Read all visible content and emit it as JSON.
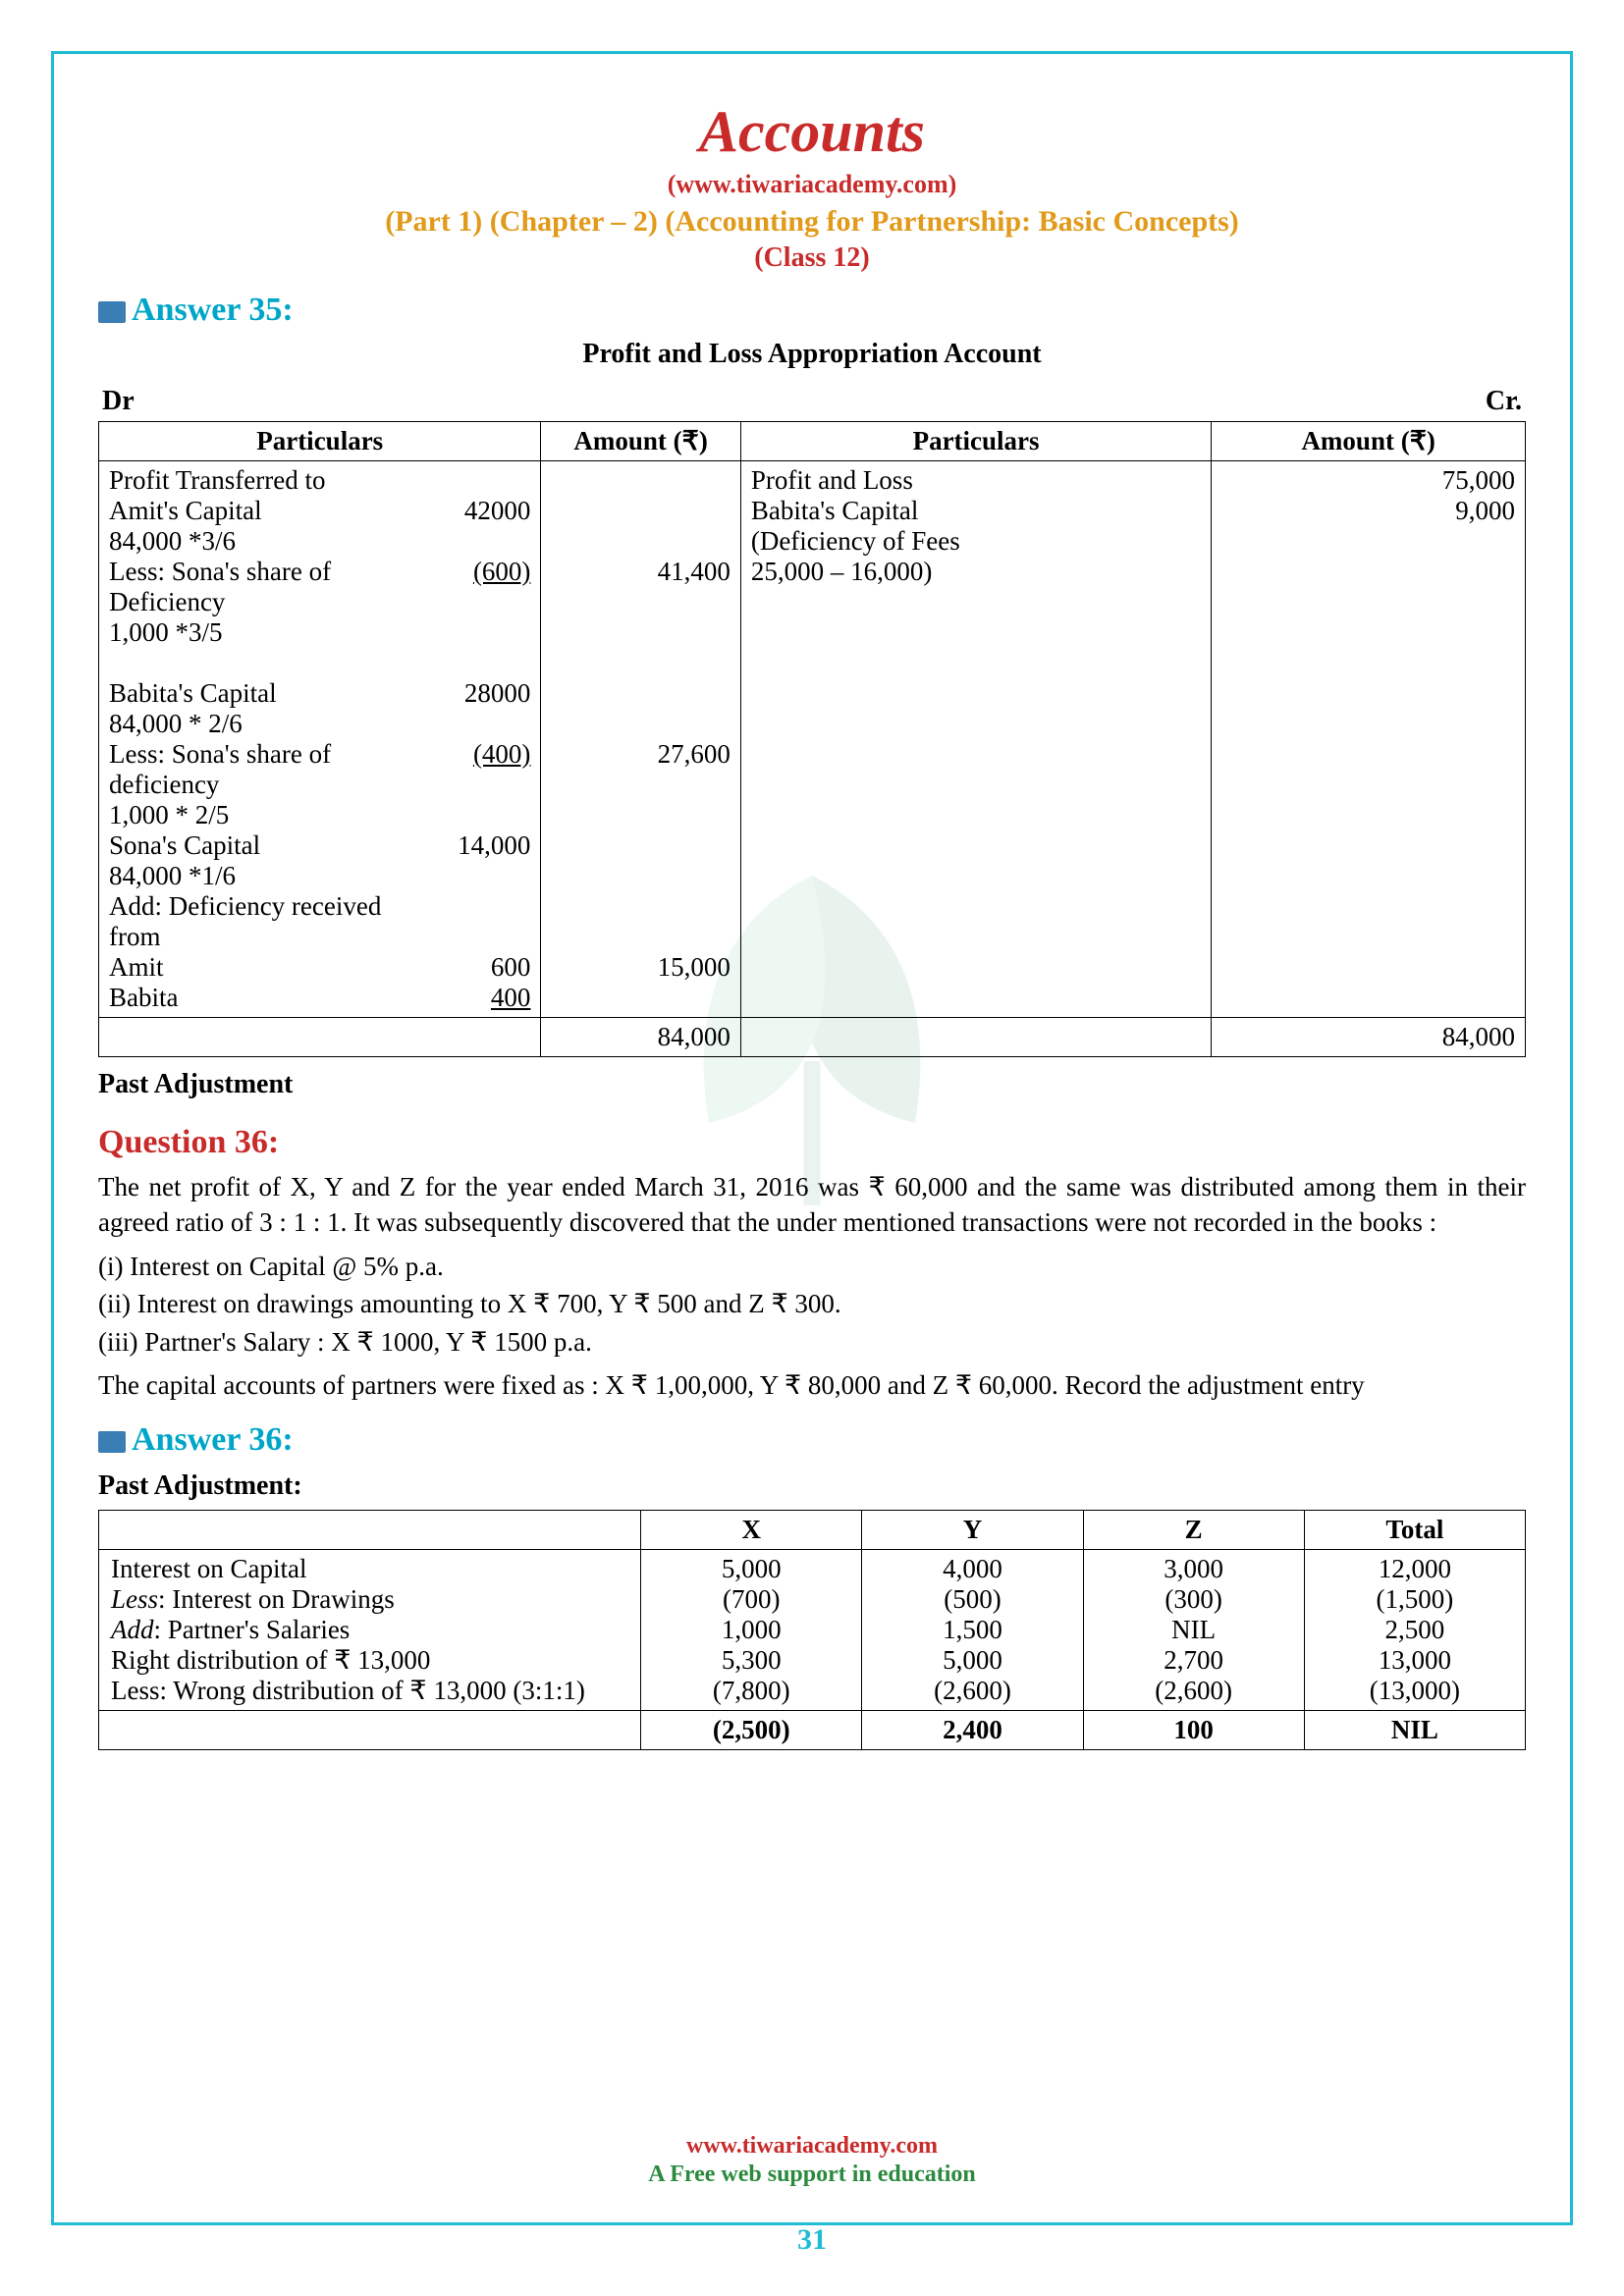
{
  "header": {
    "title": "Accounts",
    "link": "(www.tiwariacademy.com)",
    "chapter": "(Part 1) (Chapter – 2) (Accounting for Partnership: Basic Concepts)",
    "class_line": "(Class 12)"
  },
  "answer35": {
    "heading": "Answer 35:",
    "table_title": "Profit and Loss Appropriation Account",
    "dr": "Dr",
    "cr": "Cr.",
    "headers": [
      "Particulars",
      "Amount (₹)",
      "Particulars",
      "Amount (₹)"
    ],
    "left_rows": [
      {
        "l": "Profit Transferred to",
        "r": ""
      },
      {
        "l": "Amit's Capital",
        "r": "42000"
      },
      {
        "l": "84,000 *3/6",
        "r": ""
      },
      {
        "l": "Less: Sona's share of",
        "r": "(600)",
        "u": true
      },
      {
        "l": "Deficiency",
        "r": ""
      },
      {
        "l": "1,000 *3/5",
        "r": ""
      },
      {
        "l": " ",
        "r": ""
      },
      {
        "l": "Babita's Capital",
        "r": "28000"
      },
      {
        "l": "84,000 * 2/6",
        "r": ""
      },
      {
        "l": "Less: Sona's share of",
        "r": "(400)",
        "u": true
      },
      {
        "l": "deficiency",
        "r": ""
      },
      {
        "l": "1,000 * 2/5",
        "r": ""
      },
      {
        "l": "Sona's Capital",
        "r": "14,000"
      },
      {
        "l": "84,000 *1/6",
        "r": ""
      },
      {
        "l": "Add: Deficiency received from",
        "r": ""
      },
      {
        "l": "Amit",
        "r": "600"
      },
      {
        "l": "Babita",
        "r": "400",
        "u": true
      }
    ],
    "left_amounts": [
      "",
      "",
      "",
      "41,400",
      "",
      "",
      "",
      "",
      "",
      "27,600",
      "",
      "",
      "",
      "",
      "",
      "",
      "15,000"
    ],
    "right_rows": [
      {
        "p": "Profit and Loss",
        "a": "75,000"
      },
      {
        "p": "Babita's Capital",
        "a": "9,000"
      },
      {
        "p": "(Deficiency of Fees",
        "a": ""
      },
      {
        "p": "25,000 – 16,000)",
        "a": ""
      }
    ],
    "totals": {
      "l": "84,000",
      "r": "84,000"
    },
    "past_adj": "Past Adjustment"
  },
  "question36": {
    "heading": "Question 36:",
    "para1": "The net profit of X, Y and Z for the year ended March 31, 2016 was ₹ 60,000 and the same was distributed among them in their agreed ratio of 3 : 1 : 1. It was subsequently discovered that the under mentioned transactions were not recorded in the books :",
    "items": [
      "  (i) Interest on Capital @ 5% p.a.",
      " (ii) Interest on drawings amounting to X ₹ 700, Y ₹ 500 and Z ₹ 300.",
      "(iii) Partner's Salary : X ₹ 1000, Y ₹ 1500 p.a."
    ],
    "para2": "The capital accounts of partners were fixed as : X ₹ 1,00,000, Y ₹ 80,000 and Z ₹ 60,000. Record the adjustment entry"
  },
  "answer36": {
    "heading": "Answer 36:",
    "sub": "Past Adjustment:",
    "cols": [
      "",
      "X",
      "Y",
      "Z",
      "Total"
    ],
    "rows": [
      {
        "label": "Interest on Capital",
        "x": "5,000",
        "y": "4,000",
        "z": "3,000",
        "t": "12,000"
      },
      {
        "label": "Less: Interest on Drawings",
        "ital": true,
        "x": "(700)",
        "y": "(500)",
        "z": "(300)",
        "t": "(1,500)"
      },
      {
        "label": "Add: Partner's Salaries",
        "ital": true,
        "x": "1,000",
        "y": "1,500",
        "z": "NIL",
        "t": "2,500"
      },
      {
        "label": "Right distribution of ₹ 13,000",
        "x": "5,300",
        "y": "5,000",
        "z": "2,700",
        "t": "13,000"
      },
      {
        "label": "Less: Wrong distribution of ₹ 13,000 (3:1:1)",
        "x": "(7,800)",
        "y": "(2,600)",
        "z": "(2,600)",
        "t": "(13,000)"
      }
    ],
    "total": {
      "label": "",
      "x": "(2,500)",
      "y": "2,400",
      "z": "100",
      "t": "NIL"
    }
  },
  "footer": {
    "link": "www.tiwariacademy.com",
    "tag": "A Free web support in education",
    "page": "31"
  },
  "colors": {
    "frame": "#1fbcd3",
    "red": "#c92a2a",
    "orange": "#e19a1a",
    "cyan": "#00a6c7",
    "green": "#2b8a3e"
  }
}
